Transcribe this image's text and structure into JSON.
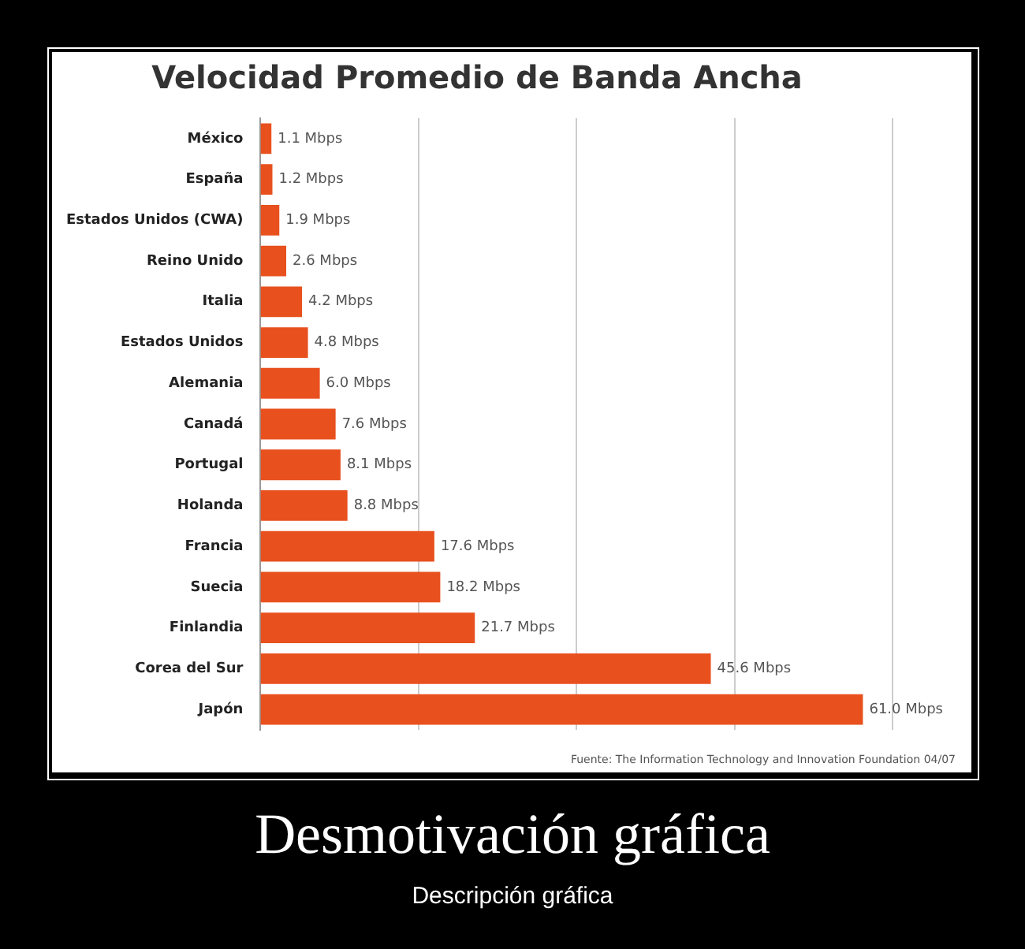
{
  "chart_data": {
    "type": "bar",
    "orientation": "horizontal",
    "title": "Velocidad Promedio de Banda Ancha",
    "categories": [
      "México",
      "España",
      "Estados Unidos (CWA)",
      "Reino Unido",
      "Italia",
      "Estados Unidos",
      "Alemania",
      "Canadá",
      "Portugal",
      "Holanda",
      "Francia",
      "Suecia",
      "Finlandia",
      "Corea del Sur",
      "Japón"
    ],
    "values": [
      1.1,
      1.2,
      1.9,
      2.6,
      4.2,
      4.8,
      6.0,
      7.6,
      8.1,
      8.8,
      17.6,
      18.2,
      21.7,
      45.6,
      61.0
    ],
    "value_labels": [
      "1.1 Mbps",
      "1.2 Mbps",
      "1.9 Mbps",
      "2.6 Mbps",
      "4.2 Mbps",
      "4.8 Mbps",
      "6.0 Mbps",
      "7.6 Mbps",
      "8.1 Mbps",
      "8.8 Mbps",
      "17.6 Mbps",
      "18.2 Mbps",
      "21.7 Mbps",
      "45.6 Mbps",
      "61.0 Mbps"
    ],
    "color": "#e8501e",
    "xlim": [
      0,
      64
    ],
    "xticks": [
      {
        "value": 16,
        "label": null
      },
      {
        "value": 32,
        "label": null
      },
      {
        "value": 48,
        "label": null
      },
      {
        "value": 64,
        "label": null
      }
    ],
    "grid": "x",
    "tick_labels": "y",
    "legend": false,
    "annotations": [
      "Fuente: The Information Technology and Innovation Foundation 04/07",
      "Desmotivación gráfica",
      "Descripción gráfica"
    ]
  }
}
